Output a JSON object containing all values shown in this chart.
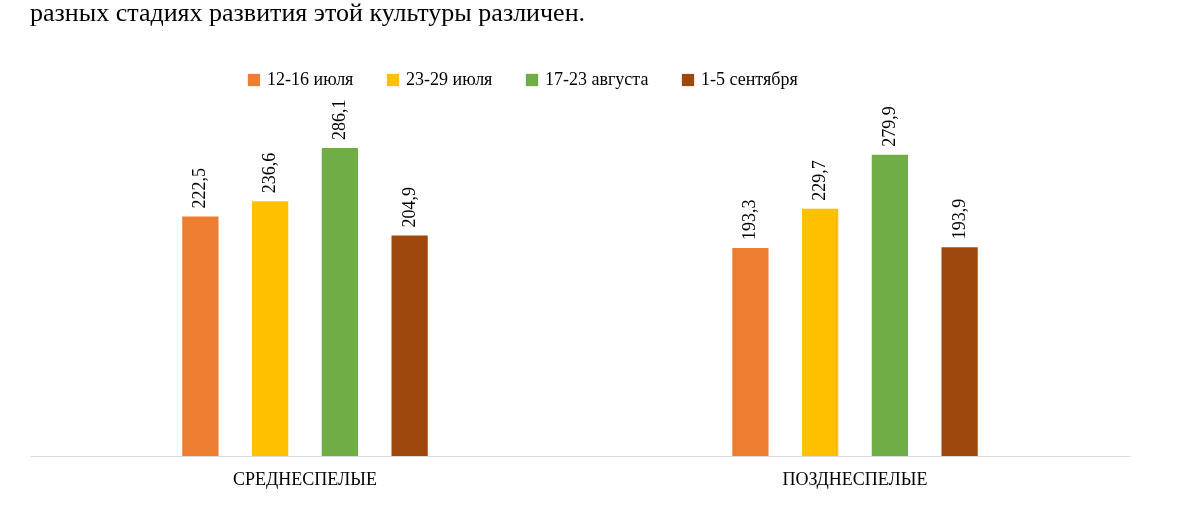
{
  "chart_data": {
    "type": "bar",
    "annotations": [
      "разных стадиях развития этой культуры различен."
    ],
    "categories": [
      "СРЕДНЕСПЕЛЫЕ",
      "ПОЗДНЕСПЕЛЫЕ"
    ],
    "series": [
      {
        "name": "12-16 июля",
        "color": "#ed7d31",
        "values": [
          222.5,
          193.3
        ],
        "value_labels": [
          "222,5",
          "193,3"
        ]
      },
      {
        "name": "23-29 июля",
        "color": "#ffc000",
        "values": [
          236.6,
          229.7
        ],
        "value_labels": [
          "236,6",
          "229,7"
        ]
      },
      {
        "name": "17-23 августа",
        "color": "#70ad47",
        "values": [
          286.1,
          279.9
        ],
        "value_labels": [
          "286,1",
          "279,9"
        ]
      },
      {
        "name": "1-5 сентября",
        "color": "#9e480e",
        "values": [
          204.9,
          193.9
        ],
        "value_labels": [
          "204,9",
          "193,9"
        ]
      }
    ],
    "legend": "top"
  }
}
